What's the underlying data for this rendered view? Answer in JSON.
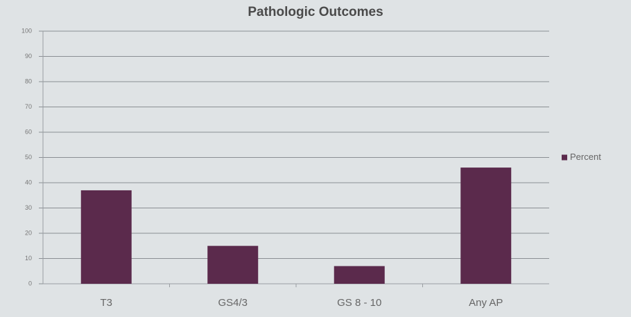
{
  "chart_data": {
    "type": "bar",
    "title": "Pathologic Outcomes",
    "categories": [
      "T3",
      "GS4/3",
      "GS 8 - 10",
      "Any AP"
    ],
    "series": [
      {
        "name": "Percent",
        "color": "#5b2a4c",
        "values": [
          37,
          15,
          7,
          46
        ]
      }
    ],
    "ylim": [
      0,
      100
    ],
    "yticks": [
      0,
      10,
      20,
      30,
      40,
      50,
      60,
      70,
      80,
      90,
      100
    ],
    "grid": true,
    "legend": "right"
  }
}
